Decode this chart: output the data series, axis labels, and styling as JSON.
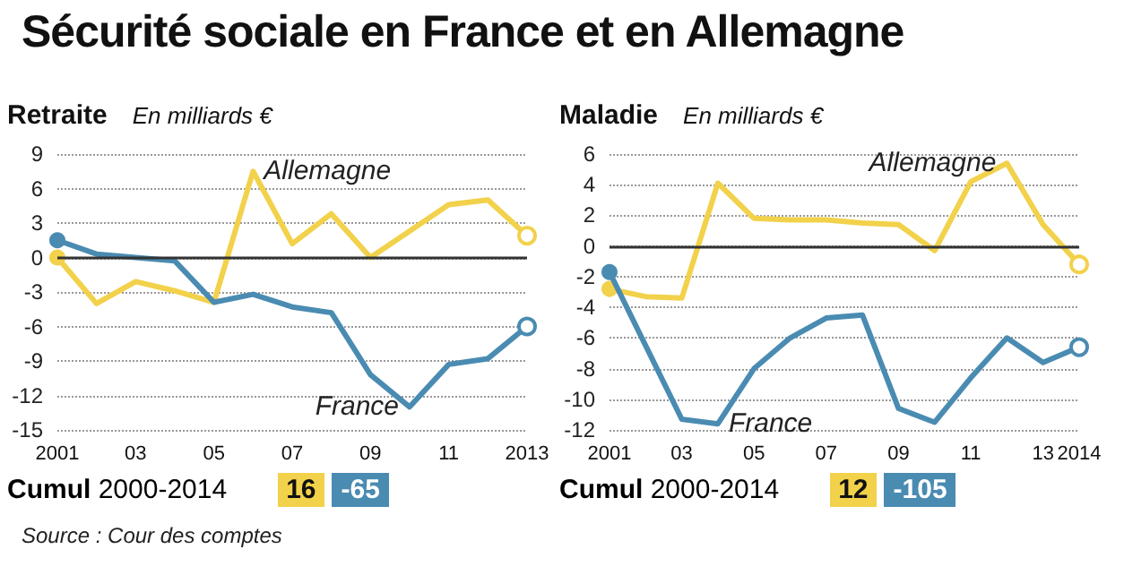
{
  "chart_data": [
    {
      "type": "line",
      "title": "Sécurité sociale en France et en Allemagne",
      "subtitle": "Retraite",
      "ylabel": "En milliards €",
      "x": [
        2001,
        2002,
        2003,
        2004,
        2005,
        2006,
        2007,
        2008,
        2009,
        2010,
        2011,
        2012,
        2013
      ],
      "series": [
        {
          "name": "Allemagne",
          "color": "#f2d14b",
          "values": [
            0,
            -4,
            -2.1,
            -2.9,
            -3.9,
            7.5,
            1.2,
            3.8,
            0,
            2.3,
            4.6,
            5,
            1.9
          ]
        },
        {
          "name": "France",
          "color": "#4a8bb2",
          "values": [
            1.5,
            0.3,
            0,
            -0.3,
            -3.9,
            -3.2,
            -4.3,
            -4.8,
            -10.2,
            -13,
            -9.3,
            -8.8,
            -6
          ]
        }
      ],
      "xlim": [
        2001,
        2013
      ],
      "xticks": [
        2001,
        {
          "value": 2003,
          "label": "03"
        },
        {
          "value": 2005,
          "label": "05"
        },
        {
          "value": 2007,
          "label": "07"
        },
        {
          "value": 2009,
          "label": "09"
        },
        {
          "value": 2011,
          "label": "11"
        },
        2013
      ],
      "ylim": [
        -15,
        9
      ],
      "yticks": [
        -15,
        -12,
        -9,
        -6,
        -3,
        0,
        3,
        6,
        9
      ],
      "ref_lines": [
        {
          "axis": "y",
          "value": 0,
          "color": "#333333"
        }
      ],
      "grid": "y",
      "legend": false,
      "annotations": [
        "Cumul 2000-2014",
        "16",
        "-65",
        "Source : Cour des comptes"
      ]
    },
    {
      "type": "line",
      "subtitle": "Maladie",
      "ylabel": "En milliards €",
      "x": [
        2001,
        2002,
        2003,
        2004,
        2005,
        2006,
        2007,
        2008,
        2009,
        2010,
        2011,
        2012,
        2013,
        2014
      ],
      "series": [
        {
          "name": "Allemagne",
          "color": "#f2d14b",
          "values": [
            -2.8,
            -3.3,
            -3.4,
            4.1,
            1.8,
            1.7,
            1.7,
            1.5,
            1.4,
            -0.3,
            4.2,
            5.4,
            1.4,
            -1.2
          ]
        },
        {
          "name": "France",
          "color": "#4a8bb2",
          "values": [
            -1.7,
            -6.5,
            -11.3,
            -11.6,
            -8,
            -6,
            -4.7,
            -4.5,
            -10.6,
            -11.5,
            -8.6,
            -6,
            -7.6,
            -6.6
          ]
        }
      ],
      "xlim": [
        2001,
        2014
      ],
      "xticks": [
        2001,
        {
          "value": 2003,
          "label": "03"
        },
        {
          "value": 2005,
          "label": "05"
        },
        {
          "value": 2007,
          "label": "07"
        },
        {
          "value": 2009,
          "label": "09"
        },
        {
          "value": 2011,
          "label": "11"
        },
        {
          "value": 2013,
          "label": "13"
        },
        2014
      ],
      "ylim": [
        -12,
        6
      ],
      "yticks": [
        -12,
        -10,
        -8,
        -6,
        -4,
        -2,
        0,
        2,
        4,
        6
      ],
      "ref_lines": [
        {
          "axis": "y",
          "value": 0,
          "color": "#333333"
        }
      ],
      "grid": "y",
      "legend": false,
      "annotations": [
        "Cumul 2000-2014",
        "12",
        "-105"
      ]
    }
  ]
}
